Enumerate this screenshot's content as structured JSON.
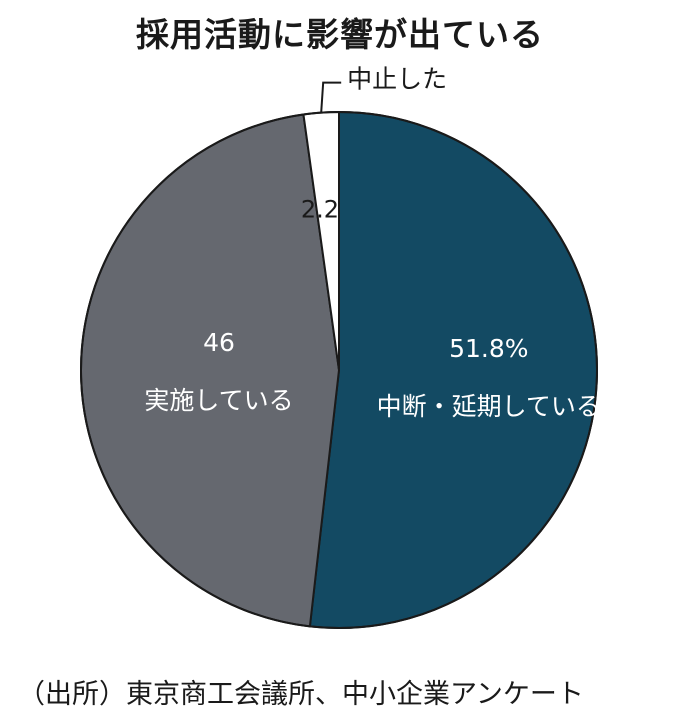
{
  "chart_data": {
    "type": "pie",
    "title": "採用活動に影響が出ている",
    "slices": [
      {
        "label": "中断・延期している",
        "value": 51.8,
        "value_text": "51.8%",
        "color": "#134a63",
        "label_color": "#ffffff"
      },
      {
        "label": "実施している",
        "value": 46,
        "value_text": "46",
        "color": "#65686f",
        "label_color": "#ffffff"
      },
      {
        "label": "中止した",
        "value": 2.2,
        "value_text": "2.2",
        "color": "#ffffff",
        "label_color": "#1a1a1a"
      }
    ],
    "source": "（出所）東京商工会議所、中小企業アンケート"
  }
}
